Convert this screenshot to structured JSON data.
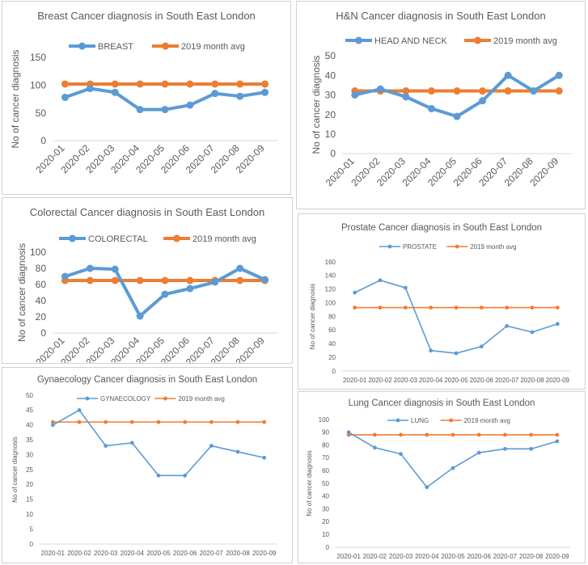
{
  "chart_data": [
    {
      "type": "line",
      "title": "Breast Cancer diagnosis in South East London",
      "ylabel": "No of cancer diagnosis",
      "xlabel": "",
      "categories": [
        "2020-01",
        "2020-02",
        "2020-03",
        "2020-04",
        "2020-05",
        "2020-06",
        "2020-07",
        "2020-08",
        "2020-09"
      ],
      "ylim": [
        0,
        150
      ],
      "yticks": [
        0,
        50,
        100,
        150
      ],
      "legend": "top",
      "series": [
        {
          "name": "BREAST",
          "values": [
            78,
            94,
            87,
            56,
            56,
            64,
            85,
            80,
            87
          ]
        },
        {
          "name": "2019 month avg",
          "values": [
            102,
            102,
            102,
            102,
            102,
            102,
            102,
            102,
            102
          ]
        }
      ]
    },
    {
      "type": "line",
      "title": "H&N Cancer diagnosis in South East London",
      "ylabel": "No of cancer diagnosis",
      "xlabel": "",
      "categories": [
        "2020-01",
        "2020-02",
        "2020-03",
        "2020-04",
        "2020-05",
        "2020-06",
        "2020-07",
        "2020-08",
        "2020-09"
      ],
      "ylim": [
        0,
        50
      ],
      "yticks": [
        0,
        10,
        20,
        30,
        40,
        50
      ],
      "legend": "top",
      "series": [
        {
          "name": "HEAD AND NECK",
          "values": [
            30,
            33,
            29,
            23,
            19,
            27,
            40,
            32,
            40
          ]
        },
        {
          "name": "2019 month avg",
          "values": [
            32,
            32,
            32,
            32,
            32,
            32,
            32,
            32,
            32
          ]
        }
      ]
    },
    {
      "type": "line",
      "title": "Colorectal Cancer diagnosis in South East London",
      "ylabel": "No of cancer diagnosis",
      "xlabel": "",
      "categories": [
        "2020-01",
        "2020-02",
        "2020-03",
        "2020-04",
        "2020-05",
        "2020-06",
        "2020-07",
        "2020-08",
        "2020-09"
      ],
      "ylim": [
        0,
        100
      ],
      "yticks": [
        0,
        20,
        40,
        60,
        80,
        100
      ],
      "legend": "top",
      "series": [
        {
          "name": "COLORECTAL",
          "values": [
            70,
            80,
            79,
            21,
            48,
            55,
            63,
            80,
            66
          ]
        },
        {
          "name": "2019 month avg",
          "values": [
            65,
            65,
            65,
            65,
            65,
            65,
            65,
            65,
            65
          ]
        }
      ]
    },
    {
      "type": "line",
      "title": "Prostate Cancer diagnosis in South East London",
      "ylabel": "No of cancer diagnosis",
      "xlabel": "",
      "categories": [
        "2020-01",
        "2020-02",
        "2020-03",
        "2020-04",
        "2020-05",
        "2020-06",
        "2020-07",
        "2020-08",
        "2020-09"
      ],
      "ylim": [
        0,
        160
      ],
      "yticks": [
        0,
        20,
        40,
        60,
        80,
        100,
        120,
        140,
        160
      ],
      "legend": "top",
      "series": [
        {
          "name": "PROSTATE",
          "values": [
            115,
            133,
            122,
            30,
            26,
            36,
            66,
            57,
            69
          ]
        },
        {
          "name": "2019 month avg",
          "values": [
            93,
            93,
            93,
            93,
            93,
            93,
            93,
            93,
            93
          ]
        }
      ]
    },
    {
      "type": "line",
      "title": "Gynaecology Cancer diagnosis in South East London",
      "ylabel": "No of cancer diagnosis",
      "xlabel": "",
      "categories": [
        "2020-01",
        "2020-02",
        "2020-03",
        "2020-04",
        "2020-05",
        "2020-06",
        "2020-07",
        "2020-08",
        "2020-09"
      ],
      "ylim": [
        0,
        50
      ],
      "yticks": [
        0,
        5,
        10,
        15,
        20,
        25,
        30,
        35,
        40,
        45,
        50
      ],
      "legend": "top",
      "series": [
        {
          "name": "GYNAECOLOGY",
          "values": [
            40,
            45,
            33,
            34,
            23,
            23,
            33,
            31,
            29
          ]
        },
        {
          "name": "2019 month avg",
          "values": [
            41,
            41,
            41,
            41,
            41,
            41,
            41,
            41,
            41
          ]
        }
      ]
    },
    {
      "type": "line",
      "title": "Lung Cancer diagnosis in South East London",
      "ylabel": "No of cancer diagnosis",
      "xlabel": "",
      "categories": [
        "2020-01",
        "2020-02",
        "2020-03",
        "2020-04",
        "2020-05",
        "2020-06",
        "2020-07",
        "2020-08",
        "2020-09"
      ],
      "ylim": [
        0,
        100
      ],
      "yticks": [
        0,
        10,
        20,
        30,
        40,
        50,
        60,
        70,
        80,
        90,
        100
      ],
      "legend": "top",
      "series": [
        {
          "name": "LUNG",
          "values": [
            90,
            78,
            73,
            47,
            62,
            74,
            77,
            77,
            83
          ]
        },
        {
          "name": "2019 month avg",
          "values": [
            88,
            88,
            88,
            88,
            88,
            88,
            88,
            88,
            88
          ]
        }
      ]
    }
  ],
  "colors": {
    "primary_series": "#5b9bd5",
    "average_series": "#ed7d31",
    "axis_text": "#595959",
    "grid": "#d9d9d9"
  }
}
